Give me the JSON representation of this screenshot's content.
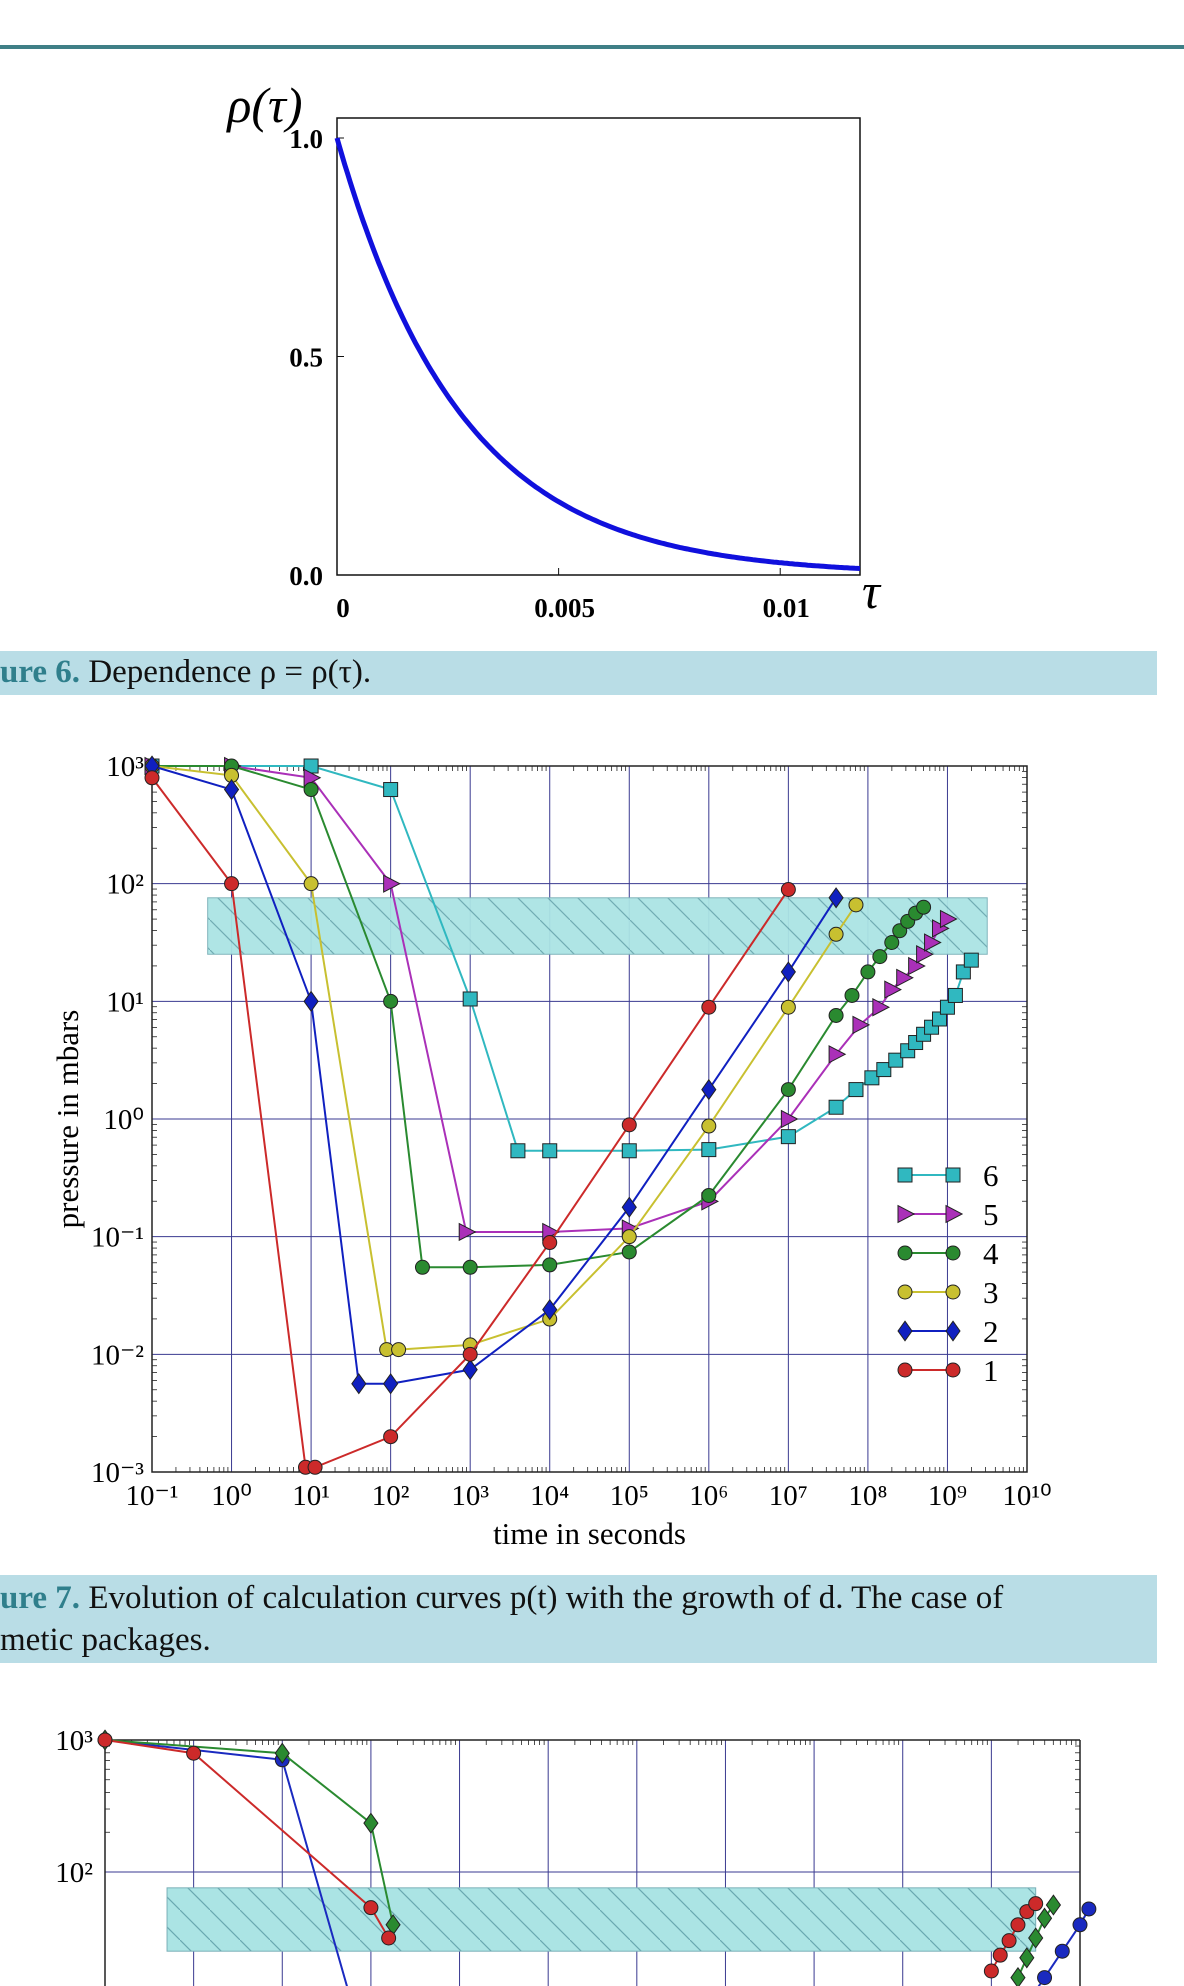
{
  "figure6": {
    "caption_label": "ure 6.",
    "caption_text": " Dependence ρ = ρ(τ).",
    "chart_data": {
      "type": "line",
      "ylabel": "ρ(τ)",
      "xlabel": "τ",
      "xlim": [
        0,
        0.0118
      ],
      "ylim": [
        0,
        1.0
      ],
      "x_ticks": [
        "0",
        "0.005",
        "0.01"
      ],
      "x_tick_values": [
        0,
        0.005,
        0.01
      ],
      "y_ticks": [
        "0.0",
        "0.5",
        "1.0"
      ],
      "y_tick_values": [
        0,
        0.5,
        1.0
      ],
      "series": [
        {
          "color": "#1010dd",
          "function": "exp(-tau/0.0028)",
          "x": [
            0,
            0.0005,
            0.001,
            0.0015,
            0.002,
            0.0025,
            0.003,
            0.004,
            0.005,
            0.006,
            0.008,
            0.01,
            0.0118
          ],
          "y": [
            1.0,
            0.84,
            0.7,
            0.59,
            0.49,
            0.41,
            0.34,
            0.24,
            0.17,
            0.12,
            0.06,
            0.03,
            0.015
          ]
        }
      ]
    }
  },
  "figure7": {
    "caption_label": "ure 7.",
    "caption_line1": " Evolution of calculation curves p(t) with the growth of d. The case of",
    "caption_line2": "metic packages.",
    "chart_data": {
      "type": "line",
      "xlabel": "time in seconds",
      "ylabel": "pressure in mbars",
      "x_scale": "log",
      "y_scale": "log",
      "xlim_exp": [
        -1,
        10
      ],
      "ylim_exp": [
        -3,
        3
      ],
      "x_tick_labels": [
        "10⁻¹",
        "10⁰",
        "10¹",
        "10²",
        "10³",
        "10⁴",
        "10⁵",
        "10⁶",
        "10⁷",
        "10⁸",
        "10⁹",
        "10¹⁰"
      ],
      "y_tick_labels": [
        "10⁻³",
        "10⁻²",
        "10⁻¹",
        "10⁰",
        "10¹",
        "10²",
        "10³"
      ],
      "band_exp": {
        "x": [
          -0.3,
          9.5
        ],
        "y": [
          1.4,
          1.88
        ]
      },
      "legend_position": "right",
      "series": [
        {
          "name": "6",
          "color": "#30b8c0",
          "marker": "square",
          "log_points": [
            [
              -1,
              3
            ],
            [
              1,
              3
            ],
            [
              2,
              2.8
            ],
            [
              3,
              1.02
            ],
            [
              3.6,
              -0.27
            ],
            [
              4,
              -0.27
            ],
            [
              5,
              -0.27
            ],
            [
              6,
              -0.26
            ],
            [
              7,
              -0.15
            ],
            [
              7.6,
              0.1
            ],
            [
              7.85,
              0.25
            ],
            [
              8.05,
              0.35
            ],
            [
              8.2,
              0.42
            ],
            [
              8.35,
              0.5
            ],
            [
              8.5,
              0.58
            ],
            [
              8.6,
              0.65
            ],
            [
              8.7,
              0.72
            ],
            [
              8.8,
              0.78
            ],
            [
              8.9,
              0.85
            ],
            [
              9.0,
              0.95
            ],
            [
              9.1,
              1.05
            ],
            [
              9.2,
              1.25
            ],
            [
              9.3,
              1.35
            ]
          ]
        },
        {
          "name": "5",
          "color": "#aa30b8",
          "marker": "triangle-right",
          "log_points": [
            [
              -1,
              3
            ],
            [
              0,
              3
            ],
            [
              1,
              2.9
            ],
            [
              2,
              2.0
            ],
            [
              2.95,
              -0.96
            ],
            [
              4,
              -0.96
            ],
            [
              5,
              -0.93
            ],
            [
              6,
              -0.7
            ],
            [
              7,
              0
            ],
            [
              7.6,
              0.55
            ],
            [
              7.9,
              0.8
            ],
            [
              8.15,
              0.95
            ],
            [
              8.3,
              1.1
            ],
            [
              8.45,
              1.2
            ],
            [
              8.6,
              1.3
            ],
            [
              8.7,
              1.4
            ],
            [
              8.8,
              1.5
            ],
            [
              8.9,
              1.62
            ],
            [
              9.0,
              1.7
            ]
          ]
        },
        {
          "name": "4",
          "color": "#2a8a30",
          "marker": "circle",
          "log_points": [
            [
              -1,
              3
            ],
            [
              0,
              3
            ],
            [
              1,
              2.8
            ],
            [
              2,
              1.0
            ],
            [
              2.4,
              -1.26
            ],
            [
              3,
              -1.26
            ],
            [
              4,
              -1.24
            ],
            [
              5,
              -1.13
            ],
            [
              6,
              -0.65
            ],
            [
              7,
              0.25
            ],
            [
              7.6,
              0.88
            ],
            [
              7.8,
              1.05
            ],
            [
              8.0,
              1.25
            ],
            [
              8.15,
              1.38
            ],
            [
              8.3,
              1.5
            ],
            [
              8.4,
              1.6
            ],
            [
              8.5,
              1.68
            ],
            [
              8.6,
              1.75
            ],
            [
              8.7,
              1.8
            ]
          ]
        },
        {
          "name": "3",
          "color": "#c8c030",
          "marker": "circle",
          "log_points": [
            [
              -1,
              3
            ],
            [
              0,
              2.92
            ],
            [
              1,
              2.0
            ],
            [
              1.95,
              -1.96
            ],
            [
              2.1,
              -1.96
            ],
            [
              3,
              -1.92
            ],
            [
              4,
              -1.7
            ],
            [
              5,
              -1.0
            ],
            [
              6,
              -0.06
            ],
            [
              7,
              0.95
            ],
            [
              7.6,
              1.57
            ],
            [
              7.85,
              1.82
            ]
          ]
        },
        {
          "name": "2",
          "color": "#1020c0",
          "marker": "diamond",
          "log_points": [
            [
              -1,
              3
            ],
            [
              0,
              2.8
            ],
            [
              1,
              1.0
            ],
            [
              1.6,
              -2.25
            ],
            [
              2,
              -2.25
            ],
            [
              3,
              -2.13
            ],
            [
              4,
              -1.62
            ],
            [
              5,
              -0.75
            ],
            [
              6,
              0.25
            ],
            [
              7,
              1.25
            ],
            [
              7.6,
              1.88
            ]
          ]
        },
        {
          "name": "1",
          "color": "#cc2a2a",
          "marker": "circle",
          "log_points": [
            [
              -1,
              2.9
            ],
            [
              0,
              2.0
            ],
            [
              0.93,
              -2.96
            ],
            [
              1.05,
              -2.96
            ],
            [
              2,
              -2.7
            ],
            [
              3,
              -2.0
            ],
            [
              4,
              -1.05
            ],
            [
              5,
              -0.05
            ],
            [
              6,
              0.95
            ],
            [
              7,
              1.95
            ]
          ]
        }
      ]
    }
  },
  "figure8_partial": {
    "chart_data": {
      "type": "line",
      "x_scale": "log",
      "y_scale": "log",
      "y_tick_labels": [
        "10³",
        "10²"
      ],
      "series": [
        {
          "color": "#1a2ac0",
          "marker": "circle",
          "log_points": [
            [
              -1,
              3
            ],
            [
              1,
              2.85
            ],
            [
              2,
              0.5
            ]
          ]
        },
        {
          "color": "#2a8a30",
          "marker": "diamond",
          "log_points": [
            [
              -1,
              3
            ],
            [
              1,
              2.9
            ],
            [
              2,
              2.37
            ],
            [
              2.25,
              1.6
            ]
          ]
        },
        {
          "color": "#cc2a2a",
          "marker": "circle",
          "log_points": [
            [
              -1,
              3
            ],
            [
              0,
              2.9
            ],
            [
              2,
              1.73
            ],
            [
              2.2,
              1.5
            ]
          ]
        },
        {
          "color": "#cc2a2a",
          "marker": "circle",
          "log_points": [
            [
              9.0,
              1.25
            ],
            [
              9.1,
              1.37
            ],
            [
              9.2,
              1.48
            ],
            [
              9.3,
              1.6
            ],
            [
              9.4,
              1.7
            ],
            [
              9.5,
              1.76
            ]
          ]
        },
        {
          "color": "#2a8a30",
          "marker": "diamond",
          "log_points": [
            [
              9.3,
              1.2
            ],
            [
              9.4,
              1.35
            ],
            [
              9.5,
              1.5
            ],
            [
              9.6,
              1.65
            ],
            [
              9.7,
              1.75
            ]
          ]
        },
        {
          "color": "#1a2ac0",
          "marker": "circle",
          "log_points": [
            [
              9.4,
              1.0
            ],
            [
              9.6,
              1.2
            ],
            [
              9.8,
              1.4
            ],
            [
              10.0,
              1.6
            ],
            [
              10.1,
              1.72
            ]
          ]
        }
      ]
    }
  }
}
